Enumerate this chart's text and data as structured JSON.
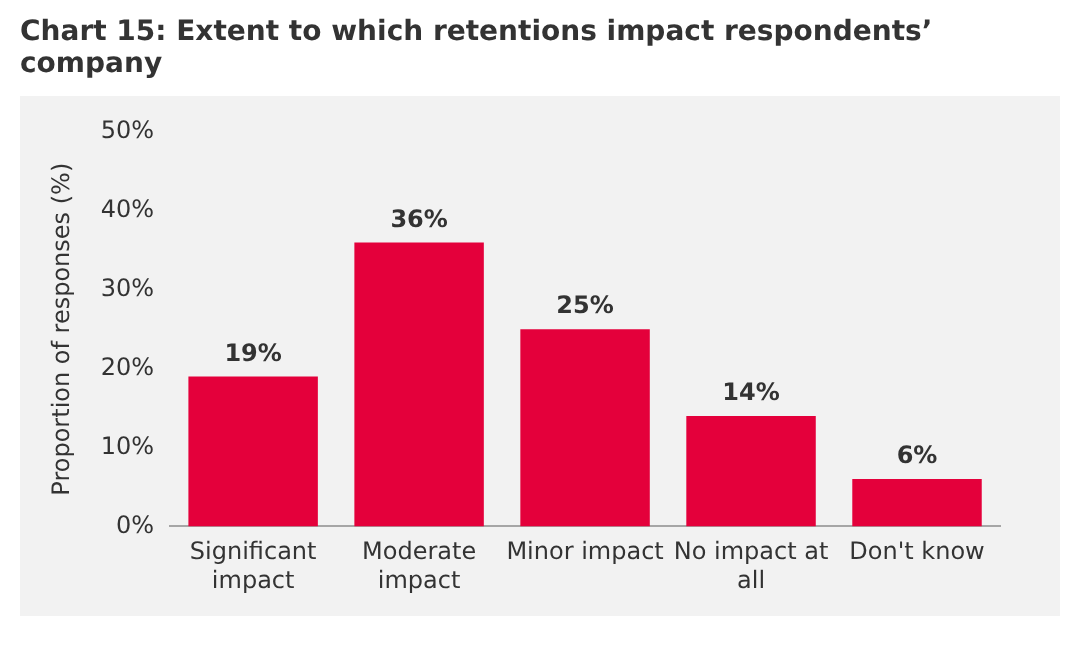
{
  "chart_data": {
    "type": "bar",
    "title": "Chart 15: Extent to which retentions impact respondents’ company",
    "ylabel": "Proportion of responses (%)",
    "categories": [
      "Significant impact",
      "Moderate impact",
      "Minor impact",
      "No impact at all",
      "Don't know"
    ],
    "values": [
      19,
      36,
      25,
      14,
      6
    ],
    "color": "#e4003b",
    "value_labels": [
      "19%",
      "36%",
      "25%",
      "14%",
      "6%"
    ],
    "ylim": [
      0,
      50
    ],
    "yticks": [
      {
        "value": 0,
        "label": "0%"
      },
      {
        "value": 10,
        "label": "10%"
      },
      {
        "value": 20,
        "label": "20%"
      },
      {
        "value": 30,
        "label": "30%"
      },
      {
        "value": 40,
        "label": "40%"
      },
      {
        "value": 50,
        "label": "50%"
      }
    ],
    "grid": false,
    "legend": false
  }
}
